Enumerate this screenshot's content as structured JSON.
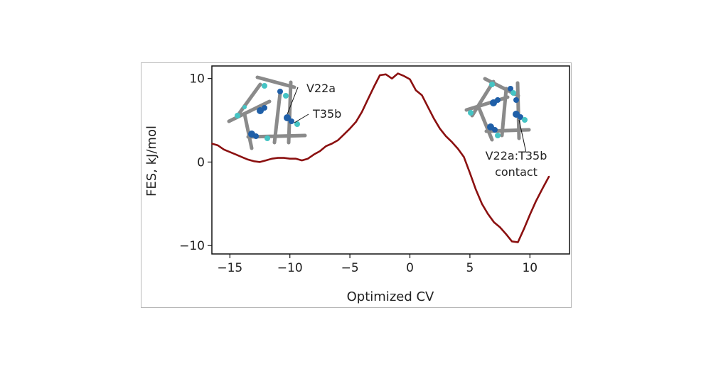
{
  "chart_data": {
    "type": "line",
    "title": "",
    "xlabel": "Optimized CV",
    "ylabel": "FES, kJ/mol",
    "xlim": [
      -16.5,
      13.3
    ],
    "ylim": [
      -11,
      11.5
    ],
    "grid": false,
    "x_ticks": [
      -15,
      -10,
      -5,
      0,
      5,
      10
    ],
    "x_tick_labels": [
      "−15",
      "−10",
      "−5",
      "0",
      "5",
      "10"
    ],
    "y_ticks": [
      -10,
      0,
      10
    ],
    "y_tick_labels": [
      "−10",
      "0",
      "10"
    ],
    "series": [
      {
        "color": "#8b1010",
        "x": [
          -16.5,
          -16.0,
          -15.5,
          -15.0,
          -14.5,
          -14.0,
          -13.5,
          -13.0,
          -12.5,
          -12.0,
          -11.5,
          -11.0,
          -10.5,
          -10.0,
          -9.5,
          -9.0,
          -8.5,
          -8.0,
          -7.5,
          -7.0,
          -6.5,
          -6.0,
          -5.5,
          -5.0,
          -4.5,
          -4.0,
          -3.5,
          -3.0,
          -2.5,
          -2.0,
          -1.5,
          -1.0,
          -0.5,
          0.0,
          0.5,
          1.0,
          1.5,
          2.0,
          2.5,
          3.0,
          3.5,
          4.0,
          4.5,
          5.0,
          5.5,
          6.0,
          6.5,
          7.0,
          7.5,
          8.0,
          8.5,
          9.0,
          9.5,
          10.0,
          10.5,
          11.0,
          11.6
        ],
        "y": [
          2.2,
          2.0,
          1.5,
          1.2,
          0.9,
          0.6,
          0.3,
          0.1,
          0.0,
          0.2,
          0.4,
          0.5,
          0.5,
          0.4,
          0.4,
          0.2,
          0.4,
          0.9,
          1.3,
          1.9,
          2.2,
          2.6,
          3.3,
          4.0,
          4.8,
          6.0,
          7.5,
          9.0,
          10.4,
          10.5,
          10.0,
          10.6,
          10.3,
          9.9,
          8.6,
          8.0,
          6.6,
          5.2,
          4.0,
          3.1,
          2.4,
          1.6,
          0.6,
          -1.3,
          -3.3,
          -5.0,
          -6.2,
          -7.2,
          -7.8,
          -8.6,
          -9.5,
          -9.6,
          -8.0,
          -6.3,
          -4.7,
          -3.3,
          -1.7
        ]
      }
    ],
    "annotations": [
      {
        "text": "V22a"
      },
      {
        "text": "T35b"
      },
      {
        "text_lines": [
          "V22a:T35b",
          "contact"
        ]
      }
    ]
  }
}
